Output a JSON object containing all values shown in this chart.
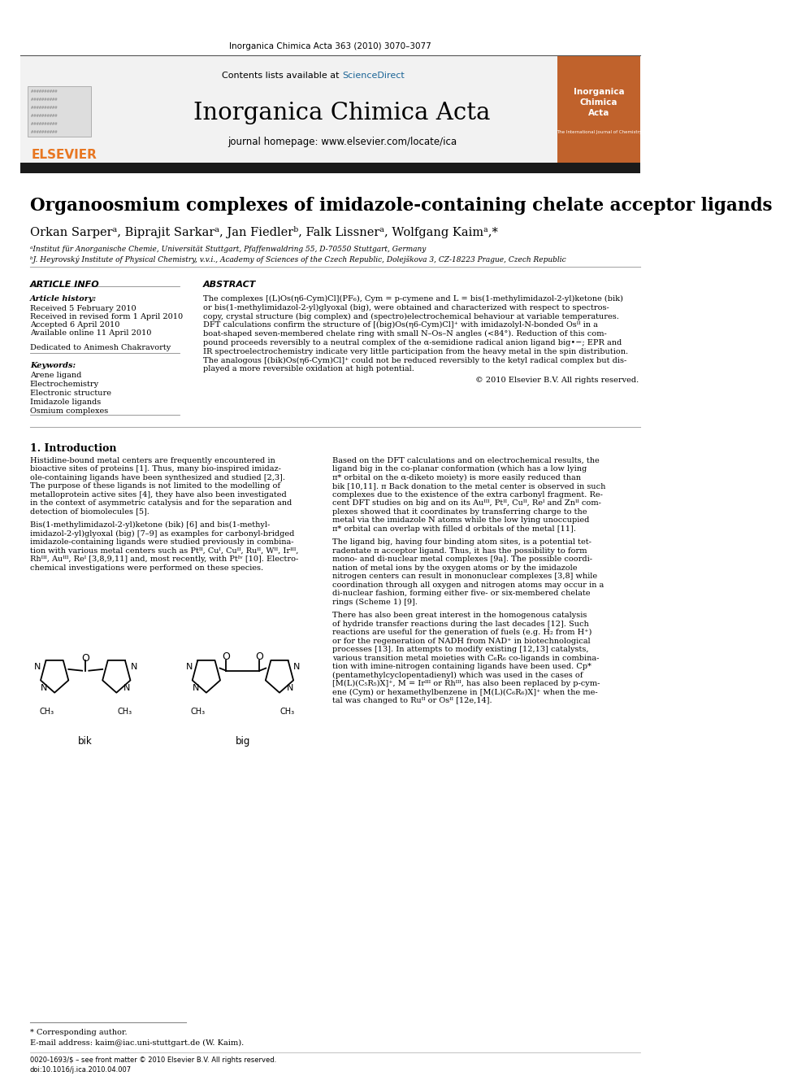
{
  "journal_header": "Inorganica Chimica Acta 363 (2010) 3070–3077",
  "journal_name": "Inorganica Chimica Acta",
  "journal_homepage": "journal homepage: www.elsevier.com/locate/ica",
  "elsevier_text": "ELSEVIER",
  "contents_text": "Contents lists available at ScienceDirect",
  "paper_title": "Organoosmium complexes of imidazole-containing chelate acceptor ligands",
  "authors": "Orkan Sarperᵃ, Biprajit Sarkarᵃ, Jan Fiedlerᵇ, Falk Lissnerᵃ, Wolfgang Kaimᵃ,*",
  "affil_a": "ᵃInstitut für Anorganische Chemie, Universität Stuttgart, Pfaffenwaldring 55, D-70550 Stuttgart, Germany",
  "affil_b": "ᵇJ. Heyrovský Institute of Physical Chemistry, v.v.i., Academy of Sciences of the Czech Republic, Dolejškova 3, CZ-18223 Prague, Czech Republic",
  "article_info_title": "ARTICLE INFO",
  "abstract_title": "ABSTRACT",
  "article_history_title": "Article history:",
  "received": "Received 5 February 2010",
  "received_revised": "Received in revised form 1 April 2010",
  "accepted": "Accepted 6 April 2010",
  "available": "Available online 11 April 2010",
  "dedicated": "Dedicated to Animesh Chakravorty",
  "keywords_title": "Keywords:",
  "keywords": [
    "Arene ligand",
    "Electrochemistry",
    "Electronic structure",
    "Imidazole ligands",
    "Osmium complexes"
  ],
  "abstract_lines": [
    "The complexes [(L)Os(η6-Cym)Cl](PF₆), Cym = p-cymene and L = bis(1-methylimidazol-2-yl)ketone (bik)",
    "or bis(1-methylimidazol-2-yl)glyoxal (big), were obtained and characterized with respect to spectros-",
    "copy, crystal structure (big complex) and (spectro)electrochemical behaviour at variable temperatures.",
    "DFT calculations confirm the structure of [(big)Os(η6-Cym)Cl]⁺ with imidazolyl-N-bonded Osᴵᴵ in a",
    "boat-shaped seven-membered chelate ring with small N–Os–N angles (<84°). Reduction of this com-",
    "pound proceeds reversibly to a neutral complex of the α-semidione radical anion ligand big•−; EPR and",
    "IR spectroelectrochemistry indicate very little participation from the heavy metal in the spin distribution.",
    "The analogous [(bik)Os(η6-Cym)Cl]⁺ could not be reduced reversibly to the ketyl radical complex but dis-",
    "played a more reversible oxidation at high potential."
  ],
  "copyright": "© 2010 Elsevier B.V. All rights reserved.",
  "section1_title": "1. Introduction",
  "intro_left_lines": [
    "Histidine-bound metal centers are frequently encountered in",
    "bioactive sites of proteins [1]. Thus, many bio-inspired imidaz-",
    "ole-containing ligands have been synthesized and studied [2,3].",
    "The purpose of these ligands is not limited to the modelling of",
    "metalloprotein active sites [4], they have also been investigated",
    "in the context of asymmetric catalysis and for the separation and",
    "detection of biomolecules [5].",
    "",
    "Bis(1-methylimidazol-2-yl)ketone (bik) [6] and bis(1-methyl-",
    "imidazol-2-yl)glyoxal (big) [7–9] as examples for carbonyl-bridged",
    "imidazole-containing ligands were studied previously in combina-",
    "tion with various metal centers such as Ptᴵᴵ, Cuᴵ, Cuᴵᴵ, Ruᴵᴵ, Wᴵᴵ, Irᴵᴵᴵ,",
    "Rhᴵᴵᴵ, Auᴵᴵᴵ, Reᴵ [3,8,9,11] and, most recently, with Ptᴵᵛ [10]. Electro-",
    "chemical investigations were performed on these species."
  ],
  "intro_right_lines": [
    "Based on the DFT calculations and on electrochemical results, the",
    "ligand big in the co-planar conformation (which has a low lying",
    "π* orbital on the α-diketo moiety) is more easily reduced than",
    "bik [10,11]. π Back donation to the metal center is observed in such",
    "complexes due to the existence of the extra carbonyl fragment. Re-",
    "cent DFT studies on big and on its Auᴵᴵᴵ, Ptᴵᴵ, Cuᴵᴵ, Reᴵ and Znᴵᴵ com-",
    "plexes showed that it coordinates by transferring charge to the",
    "metal via the imidazole N atoms while the low lying unoccupied",
    "π* orbital can overlap with filled d orbitals of the metal [11].",
    "",
    "The ligand big, having four binding atom sites, is a potential tet-",
    "radentate π acceptor ligand. Thus, it has the possibility to form",
    "mono- and di-nuclear metal complexes [9a]. The possible coordi-",
    "nation of metal ions by the oxygen atoms or by the imidazole",
    "nitrogen centers can result in mononuclear complexes [3,8] while",
    "coordination through all oxygen and nitrogen atoms may occur in a",
    "di-nuclear fashion, forming either five- or six-membered chelate",
    "rings (Scheme 1) [9].",
    "",
    "There has also been great interest in the homogenous catalysis",
    "of hydride transfer reactions during the last decades [12]. Such",
    "reactions are useful for the generation of fuels (e.g. H₂ from H⁺)",
    "or for the regeneration of NADH from NAD⁺ in biotechnological",
    "processes [13]. In attempts to modify existing [12,13] catalysts,",
    "various transition metal moieties with C₆R₆ co-ligands in combina-",
    "tion with imine-nitrogen containing ligands have been used. Cp*",
    "(pentamethylcyclopentadienyl) which was used in the cases of",
    "[M(L)(C₅R₅)X]⁺, M = Irᴵᴵᴵ or Rhᴵᴵᴵ, has also been replaced by p-cym-",
    "ene (Cym) or hexamethylbenzene in [M(L)(C₆R₆)X]⁺ when the me-",
    "tal was changed to Ruᴵᴵ or Osᴵᴵ [12e,14]."
  ],
  "bik_label": "bik",
  "big_label": "big",
  "corresponding_author": "* Corresponding author.",
  "email_note": "E-mail address: kaim@iac.uni-stuttgart.de (W. Kaim).",
  "issn_note": "0020-1693/$ – see front matter © 2010 Elsevier B.V. All rights reserved.",
  "doi_note": "doi:10.1016/j.ica.2010.04.007",
  "bg_color": "#ffffff",
  "header_bg": "#f2f2f2",
  "elsevier_orange": "#e87722",
  "black_bar_color": "#1a1a1a",
  "sciencedirect_blue": "#1a6496",
  "journal_cover_bg": "#c0622c"
}
